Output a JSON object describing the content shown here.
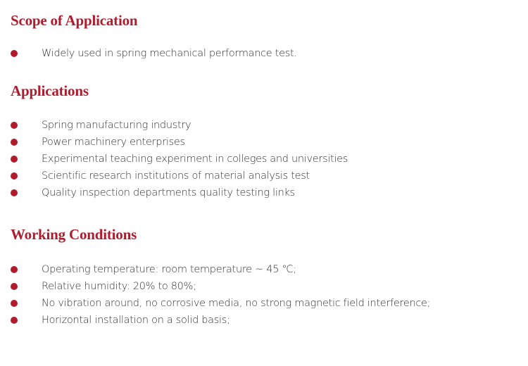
{
  "accent_color": "#b01c2e",
  "sections": [
    {
      "title": "Scope of Application",
      "items": [
        "Widely used in spring mechanical performance test."
      ]
    },
    {
      "title": "Applications",
      "items": [
        "Spring manufacturing industry",
        "Power machinery enterprises",
        "Experimental teaching experiment in colleges and universities",
        "Scientific research institutions of material analysis test",
        "Quality inspection departments quality testing links"
      ]
    },
    {
      "title": "Working Conditions",
      "items": [
        "Operating temperature: room temperature ~ 45 ℃;",
        "Relative humidity: 20% to 80%;",
        "No vibration around, no corrosive media, no strong magnetic field interference;",
        "Horizontal installation on a solid basis;"
      ]
    }
  ]
}
